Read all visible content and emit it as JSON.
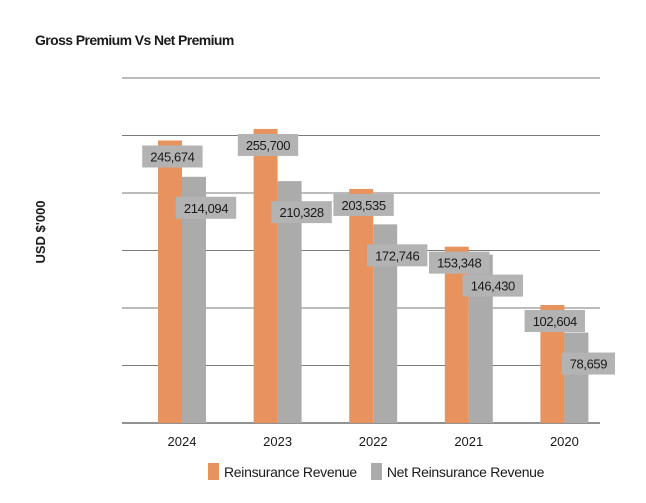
{
  "chart_data": {
    "type": "bar",
    "title": "Gross Premium Vs Net Premium",
    "ylabel": "USD $'000",
    "xlabel": "",
    "categories": [
      "2024",
      "2023",
      "2022",
      "2021",
      "2020"
    ],
    "series": [
      {
        "name": "Reinsurance Revenue",
        "color": "#e8935e",
        "values": [
          245674,
          255700,
          203535,
          153348,
          102604
        ],
        "labels": [
          "245,674",
          "255,700",
          "203,535",
          "153,348",
          "102,604"
        ]
      },
      {
        "name": "Net Reinsurance Revenue",
        "color": "#ababab",
        "values": [
          214094,
          210328,
          172746,
          146430,
          78659
        ],
        "labels": [
          "214,094",
          "210,328",
          "172,746",
          "146,430",
          "78,659"
        ]
      }
    ],
    "ylim": [
      0,
      300000
    ],
    "gridlines": true,
    "legend_position": "bottom",
    "label_box_color": "#b3b3b3"
  }
}
